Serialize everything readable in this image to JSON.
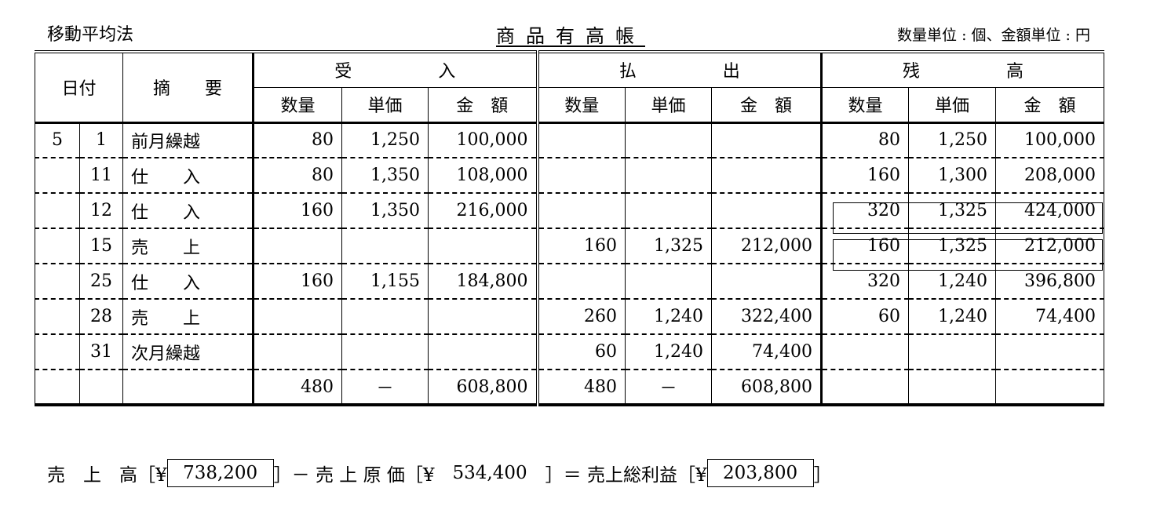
{
  "header": {
    "method": "移動平均法",
    "title": "商品有高帳",
    "units": "数量単位 : 個、金額単位 : 円"
  },
  "columns": {
    "date": "日付",
    "description": "摘　　要",
    "receipts": "受　　　　　入",
    "issues": "払　　　　　出",
    "balance": "残　　　　　高",
    "qty": "数量",
    "price": "単価",
    "amount": "金　額"
  },
  "rows": [
    {
      "month": "5",
      "day": "1",
      "desc": "前月繰越",
      "rq": "80",
      "rp": "1,250",
      "ra": "100,000",
      "iq": "",
      "ip": "",
      "ia": "",
      "bq": "80",
      "bp": "1,250",
      "ba": "100,000"
    },
    {
      "month": "",
      "day": "11",
      "desc": "仕　　入",
      "rq": "80",
      "rp": "1,350",
      "ra": "108,000",
      "iq": "",
      "ip": "",
      "ia": "",
      "bq": "160",
      "bp": "1,300",
      "ba": "208,000"
    },
    {
      "month": "",
      "day": "12",
      "desc": "仕　　入",
      "rq": "160",
      "rp": "1,350",
      "ra": "216,000",
      "iq": "",
      "ip": "",
      "ia": "",
      "bq": "320",
      "bp": "1,325",
      "ba": "424,000"
    },
    {
      "month": "",
      "day": "15",
      "desc": "売　　上",
      "rq": "",
      "rp": "",
      "ra": "",
      "iq": "160",
      "ip": "1,325",
      "ia": "212,000",
      "bq": "160",
      "bp": "1,325",
      "ba": "212,000"
    },
    {
      "month": "",
      "day": "25",
      "desc": "仕　　入",
      "rq": "160",
      "rp": "1,155",
      "ra": "184,800",
      "iq": "",
      "ip": "",
      "ia": "",
      "bq": "320",
      "bp": "1,240",
      "ba": "396,800"
    },
    {
      "month": "",
      "day": "28",
      "desc": "売　　上",
      "rq": "",
      "rp": "",
      "ra": "",
      "iq": "260",
      "ip": "1,240",
      "ia": "322,400",
      "bq": "60",
      "bp": "1,240",
      "ba": "74,400"
    },
    {
      "month": "",
      "day": "31",
      "desc": "次月繰越",
      "rq": "",
      "rp": "",
      "ra": "",
      "iq": "60",
      "ip": "1,240",
      "ia": "74,400",
      "bq": "",
      "bp": "",
      "ba": ""
    },
    {
      "month": "",
      "day": "",
      "desc": "",
      "rq": "480",
      "rp": "－",
      "ra": "608,800",
      "iq": "480",
      "ip": "－",
      "ia": "608,800",
      "bq": "",
      "bp": "",
      "ba": ""
    }
  ],
  "summary": {
    "sales_label": "売　上　高［¥",
    "sales": "738,200",
    "minus": "］－ 売 上 原 価［¥　",
    "cogs": "534,400",
    "equals": "　］＝ 売上総利益［¥",
    "gross_profit": "203,800",
    "close": "］"
  }
}
